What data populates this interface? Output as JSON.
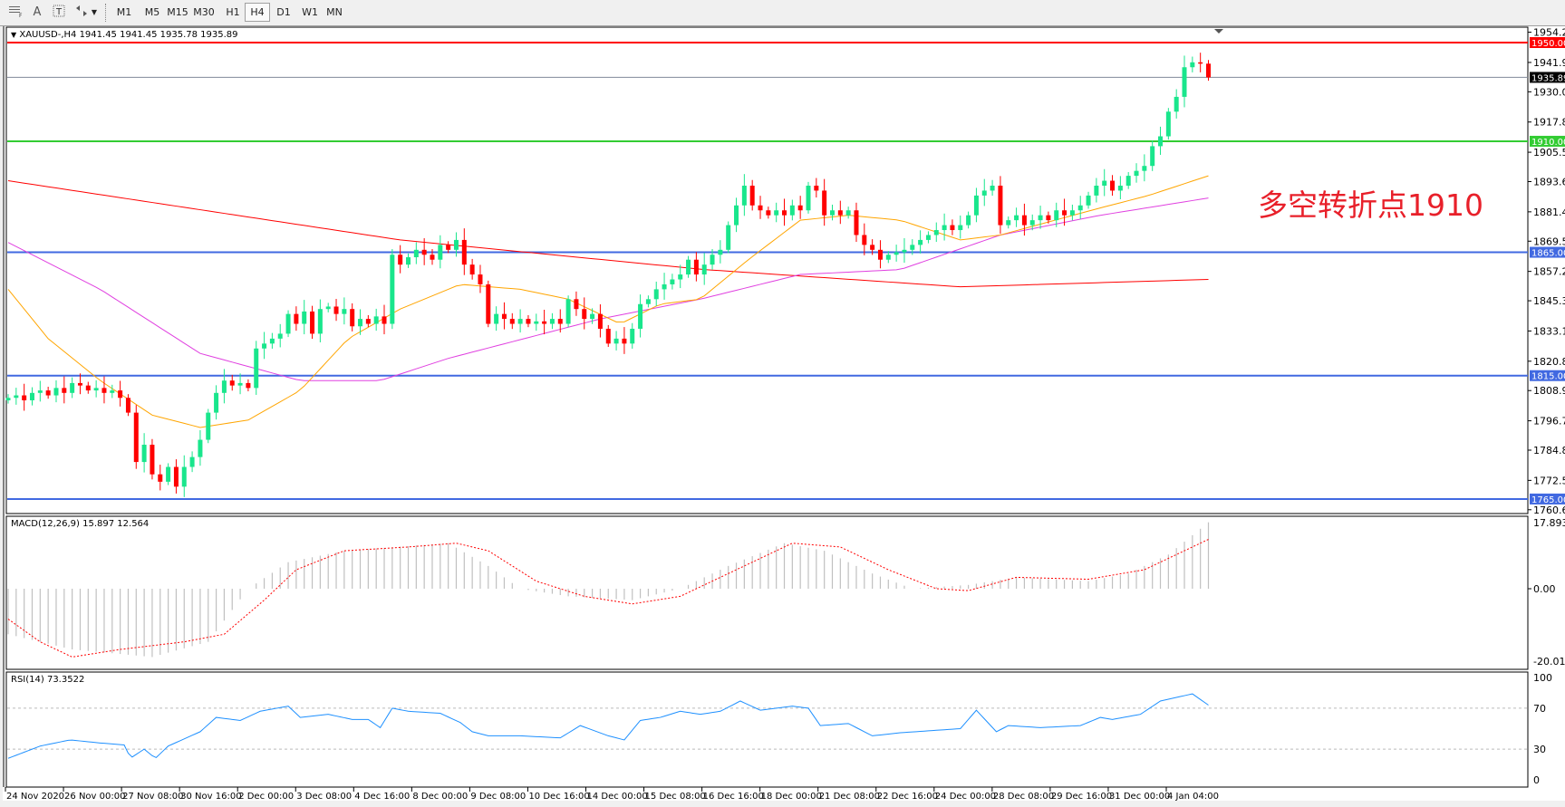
{
  "toolbar": {
    "icons": [
      "grid-period-separator-icon",
      "text-icon",
      "text-label-icon",
      "arrows-icon",
      "dropdown-icon"
    ],
    "text_tool": "A",
    "timeframes": [
      "M1",
      "M5",
      "M15",
      "M30",
      "H1",
      "H4",
      "D1",
      "W1",
      "MN"
    ],
    "active_timeframe": "H4"
  },
  "main": {
    "title": "XAUUSD-,H4  1941.45 1941.45 1935.78 1935.89",
    "annotation": "多空转折点1910",
    "annotation_color": "#e8202a"
  },
  "macd": {
    "title": "MACD(12,26,9) 15.897 12.564"
  },
  "rsi": {
    "title": "RSI(14) 73.3522"
  },
  "chart_data": {
    "type": "candlestick",
    "symbol": "XAUUSD-",
    "timeframe": "H4",
    "last_ohlc": {
      "open": 1941.45,
      "high": 1941.45,
      "low": 1935.78,
      "close": 1935.89
    },
    "price_ticks": [
      "1954.20",
      "1941.95",
      "1930.05",
      "1917.80",
      "1905.55",
      "1893.65",
      "1881.40",
      "1869.50",
      "1857.25",
      "1845.35",
      "1833.10",
      "1820.85",
      "1808.95",
      "1796.70",
      "1784.80",
      "1772.55",
      "1760.65"
    ],
    "ylim": [
      1760.65,
      1954.2
    ],
    "bull_color": "#19e68c",
    "bear_color": "#ff0000",
    "closes": [
      1806,
      1807,
      1805,
      1808,
      1809,
      1807,
      1810,
      1808,
      1812,
      1811,
      1809,
      1810,
      1808,
      1809,
      1806,
      1800,
      1780,
      1787,
      1775,
      1772,
      1778,
      1770,
      1778,
      1782,
      1789,
      1800,
      1808,
      1813,
      1811,
      1812,
      1810,
      1826,
      1828,
      1830,
      1832,
      1840,
      1836,
      1841,
      1832,
      1842,
      1843,
      1840,
      1842,
      1835,
      1838,
      1836,
      1839,
      1836,
      1864,
      1860,
      1863,
      1866,
      1864,
      1862,
      1868,
      1866,
      1870,
      1860,
      1856,
      1852,
      1836,
      1840,
      1838,
      1836,
      1838,
      1836,
      1837,
      1836,
      1838,
      1836,
      1846,
      1842,
      1838,
      1840,
      1834,
      1828,
      1830,
      1828,
      1834,
      1844,
      1846,
      1850,
      1852,
      1854,
      1856,
      1862,
      1856,
      1860,
      1864,
      1866,
      1876,
      1884,
      1892,
      1884,
      1882,
      1880,
      1882,
      1880,
      1884,
      1882,
      1892,
      1890,
      1880,
      1882,
      1880,
      1882,
      1872,
      1868,
      1866,
      1862,
      1864,
      1865,
      1866,
      1868,
      1870,
      1872,
      1874,
      1876,
      1874,
      1876,
      1880,
      1888,
      1890,
      1892,
      1876,
      1878,
      1880,
      1876,
      1878,
      1880,
      1878,
      1882,
      1880,
      1882,
      1884,
      1888,
      1892,
      1894,
      1890,
      1892,
      1896,
      1898,
      1900,
      1908,
      1912,
      1922,
      1928,
      1940,
      1942,
      1941.45,
      1935.89
    ],
    "levels": [
      {
        "price": 1950.0,
        "label": "1950.00",
        "color": "#ff0000"
      },
      {
        "price": 1935.89,
        "label": "1935.89",
        "color": "#808a99",
        "bid": true
      },
      {
        "price": 1910.0,
        "label": "1910.00",
        "color": "#33cc33"
      },
      {
        "price": 1865.0,
        "label": "1865.00",
        "color": "#4169e1"
      },
      {
        "price": 1815.0,
        "label": "1815.00",
        "color": "#4169e1"
      },
      {
        "price": 1765.0,
        "label": "1765.00",
        "color": "#4169e1"
      }
    ],
    "moving_averages": [
      {
        "color": "#ff0000",
        "points": [
          [
            0,
            1894
          ],
          [
            49,
            1870
          ],
          [
            87,
            1858
          ],
          [
            119,
            1851
          ],
          [
            150,
            1854
          ]
        ]
      },
      {
        "color": "#e040e0",
        "points": [
          [
            0,
            1869
          ],
          [
            11.5,
            1850
          ],
          [
            24,
            1824
          ],
          [
            36.5,
            1813
          ],
          [
            46.5,
            1813
          ],
          [
            55,
            1822
          ],
          [
            74,
            1838
          ],
          [
            86.5,
            1846
          ],
          [
            99,
            1856
          ],
          [
            111.5,
            1858
          ],
          [
            124,
            1872
          ],
          [
            136.5,
            1880
          ],
          [
            150,
            1887
          ]
        ]
      },
      {
        "color": "#ffa500",
        "points": [
          [
            0,
            1850
          ],
          [
            5,
            1830
          ],
          [
            11.5,
            1813
          ],
          [
            18,
            1799
          ],
          [
            24,
            1794
          ],
          [
            30,
            1797
          ],
          [
            36.5,
            1809
          ],
          [
            42.5,
            1830
          ],
          [
            49,
            1842
          ],
          [
            56.5,
            1852
          ],
          [
            64,
            1850
          ],
          [
            70,
            1846
          ],
          [
            76.5,
            1836
          ],
          [
            81.5,
            1844
          ],
          [
            86.5,
            1846
          ],
          [
            92.5,
            1862
          ],
          [
            99,
            1878
          ],
          [
            105,
            1880
          ],
          [
            111.5,
            1878
          ],
          [
            119,
            1870
          ],
          [
            124,
            1872
          ],
          [
            136.5,
            1883
          ],
          [
            142.5,
            1888
          ],
          [
            150,
            1896
          ]
        ]
      }
    ],
    "time_labels": [
      "24 Nov 2020",
      "26 Nov 00:00",
      "27 Nov 08:00",
      "30 Nov 16:00",
      "2 Dec 00:00",
      "3 Dec 08:00",
      "4 Dec 16:00",
      "8 Dec 00:00",
      "9 Dec 08:00",
      "10 Dec 16:00",
      "14 Dec 00:00",
      "15 Dec 08:00",
      "16 Dec 16:00",
      "18 Dec 00:00",
      "21 Dec 08:00",
      "22 Dec 16:00",
      "24 Dec 00:00",
      "28 Dec 08:00",
      "29 Dec 16:00",
      "31 Dec 00:00",
      "4 Jan 04:00"
    ],
    "macd": {
      "ticks": [
        "17.893",
        "0.00",
        "-20.016"
      ],
      "ylim": [
        -20.016,
        17.893
      ],
      "histogram_color": "#c0c0c0",
      "signal_color": "#ff0000",
      "histogram": [
        [
          0,
          -12
        ],
        [
          8,
          -16
        ],
        [
          18,
          -18
        ],
        [
          25,
          -14
        ],
        [
          30,
          0
        ],
        [
          35,
          7
        ],
        [
          42,
          10
        ],
        [
          55,
          12
        ],
        [
          60,
          6
        ],
        [
          64,
          0
        ],
        [
          70,
          -2
        ],
        [
          78,
          -3
        ],
        [
          84,
          0
        ],
        [
          90,
          6
        ],
        [
          97,
          12
        ],
        [
          102,
          10
        ],
        [
          108,
          4
        ],
        [
          113,
          0
        ],
        [
          120,
          1
        ],
        [
          126,
          3
        ],
        [
          135,
          2
        ],
        [
          140,
          4
        ],
        [
          145,
          9
        ],
        [
          150,
          17.5
        ]
      ],
      "signal": [
        [
          0,
          -8
        ],
        [
          4,
          -14
        ],
        [
          8,
          -18
        ],
        [
          14,
          -16
        ],
        [
          22,
          -14
        ],
        [
          27,
          -12
        ],
        [
          32,
          -3
        ],
        [
          36,
          5
        ],
        [
          42,
          10
        ],
        [
          50,
          11
        ],
        [
          56,
          12
        ],
        [
          60,
          10
        ],
        [
          66,
          2
        ],
        [
          72,
          -2
        ],
        [
          78,
          -4
        ],
        [
          84,
          -2
        ],
        [
          90,
          4
        ],
        [
          98,
          12
        ],
        [
          104,
          11
        ],
        [
          110,
          5
        ],
        [
          116,
          0
        ],
        [
          120,
          -0.5
        ],
        [
          126,
          3
        ],
        [
          135,
          2.5
        ],
        [
          142,
          5
        ],
        [
          150,
          13
        ]
      ]
    },
    "rsi": {
      "ticks": [
        "100",
        "70",
        "30",
        "0"
      ],
      "levels": [
        70,
        30
      ],
      "ylim": [
        0,
        100
      ],
      "color": "#1e90ff",
      "values": [
        [
          0,
          21
        ],
        [
          4,
          33
        ],
        [
          7.75,
          39
        ],
        [
          11.5,
          36
        ],
        [
          14.6,
          34
        ],
        [
          15.25,
          21
        ],
        [
          17,
          30
        ],
        [
          18.4,
          21
        ],
        [
          20,
          33
        ],
        [
          24,
          47
        ],
        [
          26,
          61
        ],
        [
          29,
          58
        ],
        [
          31.5,
          67
        ],
        [
          35,
          72
        ],
        [
          36.5,
          61
        ],
        [
          40,
          64
        ],
        [
          43,
          59
        ],
        [
          45,
          59
        ],
        [
          46.5,
          51
        ],
        [
          48,
          70
        ],
        [
          50,
          67
        ],
        [
          54,
          65
        ],
        [
          56.5,
          56
        ],
        [
          58,
          47
        ],
        [
          60,
          43
        ],
        [
          64,
          43
        ],
        [
          69,
          41
        ],
        [
          71.5,
          53
        ],
        [
          75,
          43
        ],
        [
          77,
          39
        ],
        [
          79,
          58
        ],
        [
          81.5,
          61
        ],
        [
          84,
          67
        ],
        [
          86.5,
          64
        ],
        [
          89,
          67
        ],
        [
          91.5,
          77
        ],
        [
          94,
          68
        ],
        [
          98,
          72
        ],
        [
          100,
          70
        ],
        [
          101.5,
          53
        ],
        [
          105,
          55
        ],
        [
          108,
          43
        ],
        [
          111.5,
          46
        ],
        [
          119,
          50
        ],
        [
          121,
          68
        ],
        [
          123.5,
          47
        ],
        [
          125,
          53
        ],
        [
          129,
          51
        ],
        [
          134,
          53
        ],
        [
          136.5,
          61
        ],
        [
          138,
          59
        ],
        [
          141.5,
          64
        ],
        [
          144,
          77
        ],
        [
          148,
          84
        ],
        [
          150,
          73
        ]
      ]
    }
  }
}
